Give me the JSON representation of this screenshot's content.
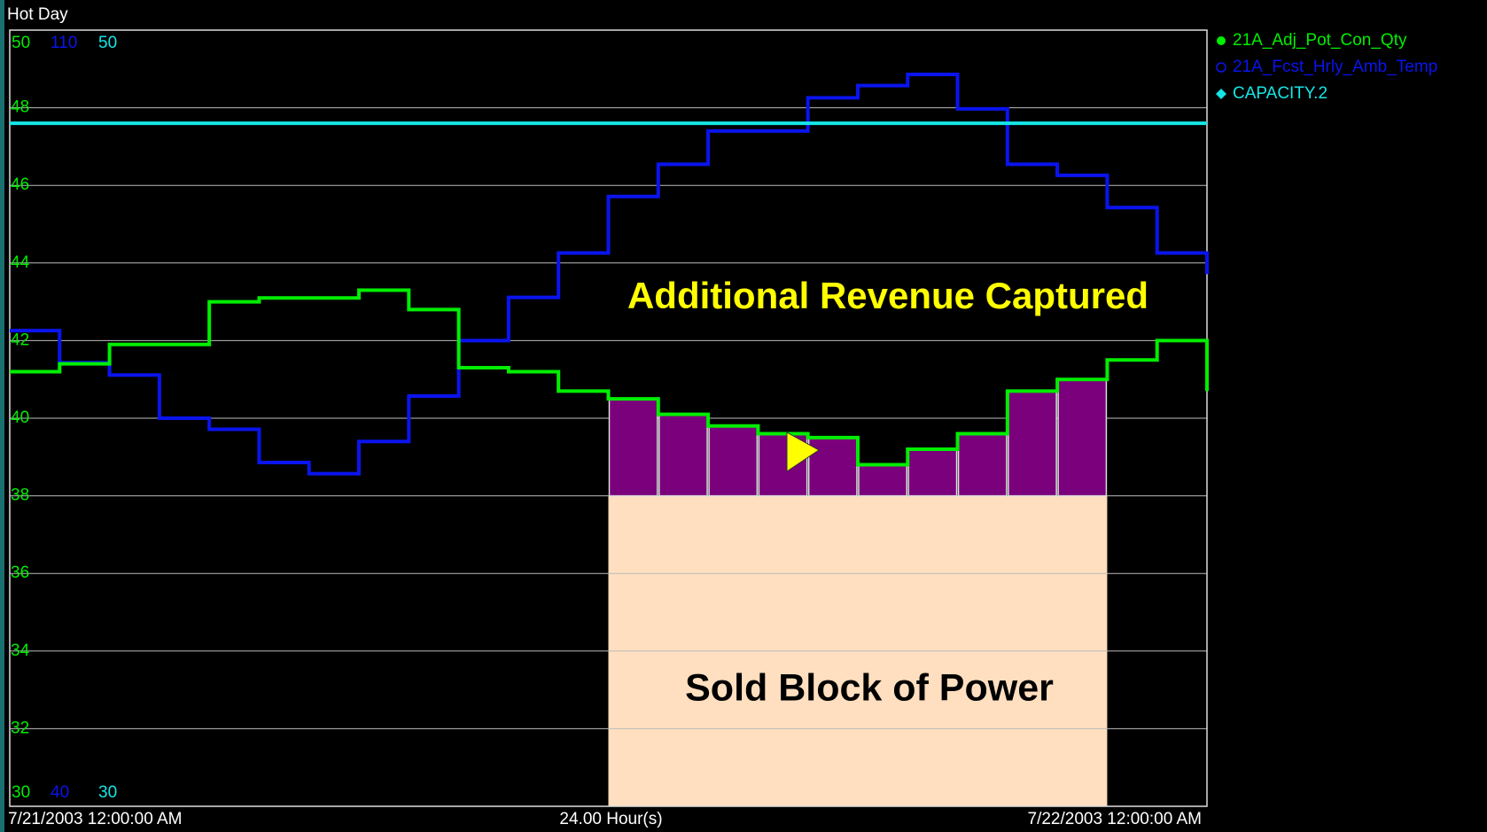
{
  "chart_data": {
    "type": "step",
    "title": "Hot Day",
    "x": [
      0,
      1,
      2,
      3,
      4,
      5,
      6,
      7,
      8,
      9,
      10,
      11,
      12,
      13,
      14,
      15,
      16,
      17,
      18,
      19,
      20,
      21,
      22,
      23,
      24
    ],
    "xlim": [
      0,
      24
    ],
    "x_labels": [
      "7/21/2003 12:00:00 AM",
      "24.00 Hour(s)",
      "7/22/2003 12:00:00 AM"
    ],
    "yticks": [
      32,
      34,
      36,
      38,
      40,
      42,
      44,
      46,
      48
    ],
    "grid": true,
    "series": [
      {
        "name": "21A_Adj_Pot_Con_Qty",
        "color": "#00ee00",
        "ylim": [
          30,
          50
        ],
        "values": [
          41.2,
          41.4,
          41.9,
          41.9,
          43.0,
          43.1,
          43.1,
          43.3,
          42.8,
          41.3,
          41.2,
          40.7,
          40.5,
          40.1,
          39.8,
          39.6,
          39.5,
          38.8,
          39.2,
          39.6,
          40.7,
          41.0,
          41.5,
          42.0,
          40.7
        ]
      },
      {
        "name": "21A_Fcst_Hrly_Amb_Temp",
        "color": "#0a14ee",
        "ylim": [
          40,
          110
        ],
        "values": [
          82.9,
          80.0,
          78.9,
          75.0,
          74.0,
          71.0,
          70.0,
          72.9,
          77.0,
          82.0,
          85.9,
          89.9,
          95.0,
          97.9,
          100.9,
          100.9,
          103.9,
          105.0,
          106.0,
          102.9,
          97.9,
          96.9,
          94.0,
          89.9,
          88.0
        ]
      },
      {
        "name": "CAPACITY.2",
        "color": "#14e6e6",
        "ylim": [
          30,
          50
        ],
        "values": [
          47.6,
          47.6,
          47.6,
          47.6,
          47.6,
          47.6,
          47.6,
          47.6,
          47.6,
          47.6,
          47.6,
          47.6,
          47.6,
          47.6,
          47.6,
          47.6,
          47.6,
          47.6,
          47.6,
          47.6,
          47.6,
          47.6,
          47.6,
          47.6,
          47.6
        ]
      }
    ],
    "sold_block": {
      "label": "Sold Block of Power",
      "xlim": [
        12,
        22
      ],
      "value": 38,
      "color": "#ffdfbf"
    },
    "revenue": {
      "label": "Additional Revenue Captured",
      "xlim": [
        12,
        22
      ],
      "color": "#7b007b"
    }
  }
}
